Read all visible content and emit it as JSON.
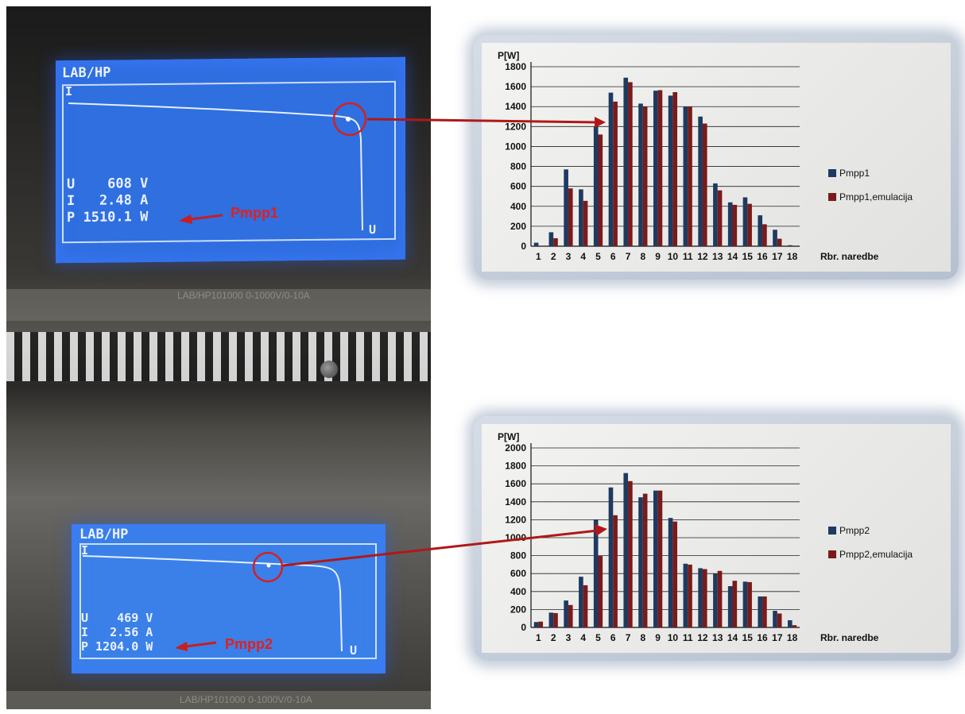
{
  "left_panel": {
    "top_display": {
      "title": "LAB/HP",
      "i_axis": "I",
      "u_axis": "U",
      "readout_u": "U    608 V",
      "readout_i": "I   2.48 A",
      "readout_p": "P 1510.1 W",
      "model_label": "LAB/HP101000  0-1000V/0-10A",
      "annotation": "Pmpp1"
    },
    "bottom_display": {
      "title": "LAB/HP",
      "i_axis": "I",
      "u_axis": "U",
      "readout_u": "U    469 V",
      "readout_i": "I   2.56 A",
      "readout_p": "P 1204.0 W",
      "model_label": "LAB/HP101000  0-1000V/0-10A",
      "annotation": "Pmpp2"
    }
  },
  "colors": {
    "series_a": "#1f3a5f",
    "series_b": "#7a1a1a",
    "annotation_red": "#e02020",
    "screen_blue": "#2f6fe0"
  },
  "chart_data": [
    {
      "type": "bar",
      "ylabel": "P[W]",
      "xlabel": "Rbr. naredbe",
      "categories": [
        "1",
        "2",
        "3",
        "4",
        "5",
        "6",
        "7",
        "8",
        "9",
        "10",
        "11",
        "12",
        "13",
        "14",
        "15",
        "16",
        "17",
        "18"
      ],
      "ylim": [
        0,
        1800
      ],
      "yticks": [
        0,
        200,
        400,
        600,
        800,
        1000,
        1200,
        1400,
        1600,
        1800
      ],
      "grid": true,
      "legend_position": "right",
      "series": [
        {
          "name": "Pmpp1",
          "color": "#1f3a5f",
          "values": [
            35,
            140,
            770,
            570,
            1200,
            1540,
            1690,
            1430,
            1560,
            1510,
            1400,
            1300,
            630,
            440,
            490,
            310,
            165,
            10
          ]
        },
        {
          "name": "Pmpp1,emulacija",
          "color": "#7a1a1a",
          "values": [
            0,
            80,
            580,
            455,
            1120,
            1450,
            1645,
            1400,
            1565,
            1545,
            1400,
            1230,
            560,
            415,
            425,
            220,
            75,
            0
          ]
        }
      ]
    },
    {
      "type": "bar",
      "ylabel": "P[W]",
      "xlabel": "Rbr. naredbe",
      "categories": [
        "1",
        "2",
        "3",
        "4",
        "5",
        "6",
        "7",
        "8",
        "9",
        "10",
        "11",
        "12",
        "13",
        "14",
        "15",
        "16",
        "17",
        "18"
      ],
      "ylim": [
        0,
        2000
      ],
      "yticks": [
        0,
        200,
        400,
        600,
        800,
        1000,
        1200,
        1400,
        1600,
        1800,
        2000
      ],
      "grid": true,
      "legend_position": "right",
      "series": [
        {
          "name": "Pmpp2",
          "color": "#1f3a5f",
          "values": [
            60,
            165,
            300,
            565,
            1200,
            1560,
            1720,
            1450,
            1525,
            1220,
            710,
            660,
            600,
            460,
            510,
            345,
            185,
            80
          ]
        },
        {
          "name": "Pmpp2,emulacija",
          "color": "#7a1a1a",
          "values": [
            65,
            160,
            250,
            470,
            800,
            1250,
            1630,
            1490,
            1525,
            1180,
            700,
            650,
            630,
            520,
            505,
            345,
            155,
            25
          ]
        }
      ]
    }
  ]
}
